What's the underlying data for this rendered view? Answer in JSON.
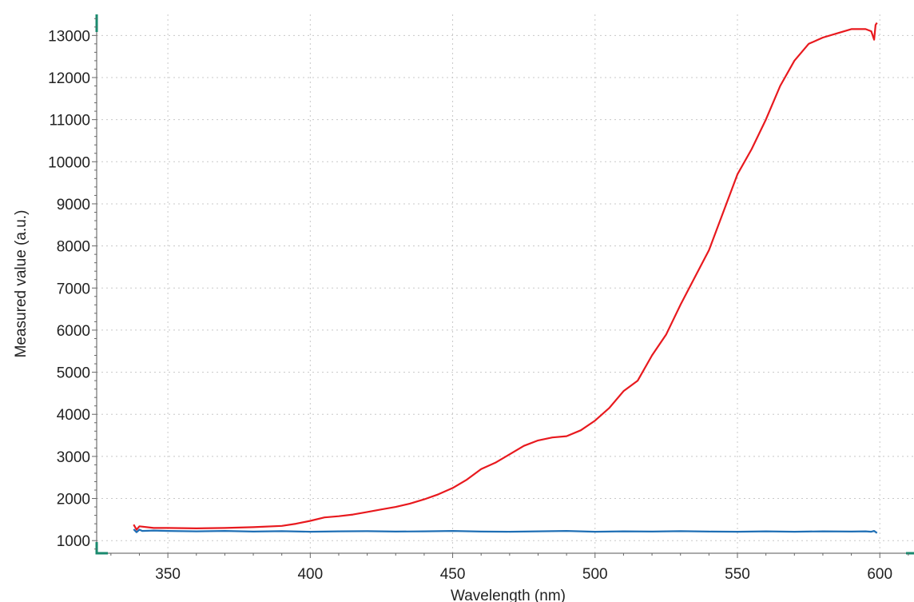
{
  "chart_data": {
    "type": "line",
    "xlabel": "Wavelength (nm)",
    "ylabel": "Measured value (a.u.)",
    "xlim": [
      325,
      612
    ],
    "ylim": [
      700,
      13500
    ],
    "xticks": [
      350,
      400,
      450,
      500,
      550,
      600
    ],
    "yticks": [
      1000,
      2000,
      3000,
      4000,
      5000,
      6000,
      7000,
      8000,
      9000,
      10000,
      11000,
      12000,
      13000
    ],
    "grid": true,
    "legend": "none",
    "series": [
      {
        "color": "#e8191e",
        "x": [
          338,
          339,
          340,
          345,
          350,
          360,
          370,
          380,
          390,
          395,
          400,
          405,
          410,
          415,
          420,
          425,
          430,
          435,
          440,
          445,
          450,
          455,
          460,
          465,
          470,
          475,
          480,
          485,
          490,
          495,
          500,
          505,
          510,
          515,
          520,
          525,
          530,
          535,
          540,
          545,
          550,
          555,
          560,
          565,
          570,
          575,
          580,
          585,
          590,
          595,
          597,
          598,
          598.5,
          599
        ],
        "values": [
          1380,
          1260,
          1340,
          1300,
          1300,
          1290,
          1300,
          1320,
          1350,
          1400,
          1470,
          1550,
          1580,
          1620,
          1680,
          1740,
          1800,
          1880,
          1980,
          2100,
          2250,
          2450,
          2700,
          2850,
          3050,
          3250,
          3380,
          3450,
          3480,
          3620,
          3850,
          4150,
          4550,
          4800,
          5400,
          5900,
          6600,
          7250,
          7900,
          8800,
          9700,
          10300,
          11000,
          11800,
          12400,
          12800,
          12950,
          13050,
          13150,
          13150,
          13100,
          12900,
          13250,
          13300
        ]
      },
      {
        "color": "#1f6fb5",
        "x": [
          338,
          339,
          340,
          341,
          345,
          350,
          360,
          370,
          380,
          390,
          400,
          410,
          420,
          430,
          440,
          450,
          460,
          470,
          480,
          490,
          500,
          510,
          520,
          530,
          540,
          550,
          560,
          570,
          580,
          590,
          595,
          597,
          598,
          599
        ],
        "values": [
          1270,
          1200,
          1260,
          1230,
          1240,
          1230,
          1220,
          1230,
          1215,
          1225,
          1210,
          1220,
          1225,
          1215,
          1220,
          1230,
          1215,
          1210,
          1220,
          1230,
          1210,
          1220,
          1215,
          1225,
          1215,
          1210,
          1220,
          1210,
          1220,
          1215,
          1220,
          1210,
          1230,
          1180
        ]
      }
    ]
  }
}
